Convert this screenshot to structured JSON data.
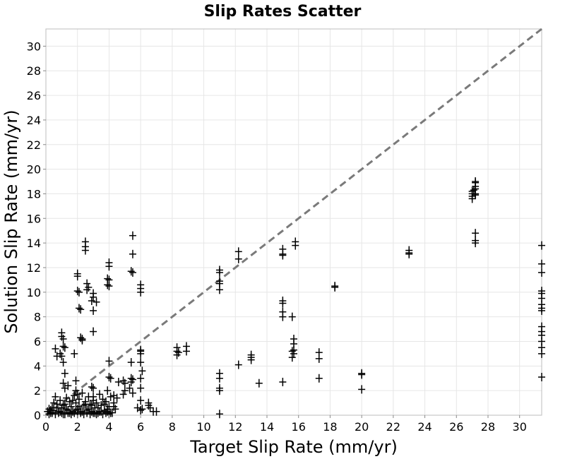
{
  "chart_data": {
    "type": "scatter",
    "title": "Slip Rates Scatter",
    "xlabel": "Target Slip Rate (mm/yr)",
    "ylabel": "Solution Slip Rate (mm/yr)",
    "xlim": [
      0,
      31.4
    ],
    "ylim": [
      0,
      31.4
    ],
    "x_ticks": [
      0,
      2,
      4,
      6,
      8,
      10,
      12,
      14,
      16,
      18,
      20,
      22,
      24,
      26,
      28,
      30
    ],
    "y_ticks": [
      0,
      2,
      4,
      6,
      8,
      10,
      12,
      14,
      16,
      18,
      20,
      22,
      24,
      26,
      28,
      30
    ],
    "x_tick_labels": [
      "0",
      "2",
      "4",
      "6",
      "8",
      "10",
      "12",
      "14",
      "16",
      "18",
      "20",
      "22",
      "24",
      "26",
      "28",
      "30"
    ],
    "y_tick_labels": [
      "0",
      "2",
      "4",
      "6",
      "8",
      "10",
      "12",
      "14",
      "16",
      "18",
      "20",
      "22",
      "24",
      "26",
      "28",
      "30"
    ],
    "grid": true,
    "marker": "plus",
    "marker_color": "#000000",
    "reference_line": {
      "type": "y=x",
      "style": "dashed",
      "color": "#7a7a7a"
    },
    "series": [
      {
        "points": [
          [
            0.1,
            0.3
          ],
          [
            0.2,
            0.5
          ],
          [
            0.3,
            0.2
          ],
          [
            0.4,
            0.6
          ],
          [
            0.5,
            0.4
          ],
          [
            0.6,
            1.5
          ],
          [
            0.7,
            0.9
          ],
          [
            0.8,
            0.2
          ],
          [
            0.9,
            1.2
          ],
          [
            1.0,
            0.6
          ],
          [
            1.1,
            0.1
          ],
          [
            1.2,
            0.9
          ],
          [
            1.3,
            1.4
          ],
          [
            1.4,
            0.4
          ],
          [
            1.5,
            1.1
          ],
          [
            1.6,
            0.7
          ],
          [
            1.7,
            0.3
          ],
          [
            1.8,
            1.6
          ],
          [
            1.9,
            1.0
          ],
          [
            2.0,
            0.5
          ],
          [
            2.1,
            1.3
          ],
          [
            2.2,
            0.2
          ],
          [
            2.3,
            1.8
          ],
          [
            2.4,
            0.8
          ],
          [
            2.5,
            1.1
          ],
          [
            2.6,
            0.4
          ],
          [
            2.7,
            1.5
          ],
          [
            2.8,
            0.9
          ],
          [
            2.9,
            0.3
          ],
          [
            3.0,
            1.2
          ],
          [
            3.1,
            0.6
          ],
          [
            3.2,
            1.0
          ],
          [
            3.3,
            0.2
          ],
          [
            3.4,
            1.7
          ],
          [
            3.5,
            0.8
          ],
          [
            3.6,
            1.3
          ],
          [
            3.7,
            0.4
          ],
          [
            3.8,
            1.1
          ],
          [
            3.9,
            0.3
          ],
          [
            4.0,
            0.7
          ],
          [
            4.1,
            1.5
          ],
          [
            4.2,
            0.2
          ],
          [
            4.3,
            1.0
          ],
          [
            4.4,
            0.5
          ],
          [
            0.3,
            0.4
          ],
          [
            0.5,
            1.0
          ],
          [
            0.7,
            0.6
          ],
          [
            0.9,
            0.3
          ],
          [
            1.1,
            0.8
          ],
          [
            1.3,
            0.5
          ],
          [
            1.5,
            0.2
          ],
          [
            1.7,
            1.2
          ],
          [
            1.9,
            0.4
          ],
          [
            2.1,
            0.7
          ],
          [
            2.3,
            0.3
          ],
          [
            2.5,
            0.9
          ],
          [
            2.7,
            0.5
          ],
          [
            2.9,
            0.8
          ],
          [
            3.1,
            0.2
          ],
          [
            3.3,
            0.6
          ],
          [
            3.5,
            0.3
          ],
          [
            3.7,
            0.9
          ],
          [
            3.9,
            0.5
          ],
          [
            4.1,
            0.2
          ],
          [
            4.3,
            0.7
          ],
          [
            0.2,
            0.1
          ],
          [
            0.4,
            0.2
          ],
          [
            0.6,
            0.1
          ],
          [
            0.8,
            0.3
          ],
          [
            1.0,
            0.2
          ],
          [
            1.2,
            0.1
          ],
          [
            1.4,
            0.2
          ],
          [
            1.6,
            0.1
          ],
          [
            1.8,
            0.2
          ],
          [
            2.0,
            0.1
          ],
          [
            2.2,
            0.3
          ],
          [
            2.4,
            0.1
          ],
          [
            2.6,
            0.2
          ],
          [
            2.8,
            0.1
          ],
          [
            3.0,
            0.2
          ],
          [
            3.2,
            0.1
          ],
          [
            3.4,
            0.3
          ],
          [
            3.6,
            0.1
          ],
          [
            3.8,
            0.2
          ],
          [
            4.0,
            0.1
          ],
          [
            0.7,
            4.8
          ],
          [
            0.6,
            5.4
          ],
          [
            0.9,
            5.0
          ],
          [
            1.0,
            6.7
          ],
          [
            1.0,
            6.4
          ],
          [
            1.1,
            6.2
          ],
          [
            1.1,
            5.6
          ],
          [
            1.2,
            5.5
          ],
          [
            1.0,
            4.8
          ],
          [
            1.1,
            4.3
          ],
          [
            1.2,
            3.4
          ],
          [
            1.1,
            2.6
          ],
          [
            1.2,
            2.2
          ],
          [
            1.4,
            2.4
          ],
          [
            1.8,
            5.0
          ],
          [
            1.9,
            2.8
          ],
          [
            1.9,
            2.0
          ],
          [
            2.0,
            1.7
          ],
          [
            2.0,
            11.5
          ],
          [
            2.0,
            11.3
          ],
          [
            2.0,
            10.1
          ],
          [
            2.1,
            10.0
          ],
          [
            2.1,
            8.7
          ],
          [
            2.2,
            8.6
          ],
          [
            2.2,
            6.3
          ],
          [
            2.3,
            6.2
          ],
          [
            2.3,
            6.1
          ],
          [
            2.5,
            14.1
          ],
          [
            2.5,
            13.7
          ],
          [
            2.5,
            13.4
          ],
          [
            2.6,
            10.7
          ],
          [
            2.6,
            10.2
          ],
          [
            2.7,
            10.4
          ],
          [
            3.0,
            9.9
          ],
          [
            3.0,
            9.6
          ],
          [
            2.9,
            9.3
          ],
          [
            3.2,
            9.2
          ],
          [
            3.0,
            8.5
          ],
          [
            3.0,
            6.8
          ],
          [
            2.9,
            2.3
          ],
          [
            3.0,
            2.2
          ],
          [
            3.0,
            1.5
          ],
          [
            4.0,
            12.4
          ],
          [
            4.0,
            12.1
          ],
          [
            3.9,
            11.1
          ],
          [
            4.0,
            11.0
          ],
          [
            3.9,
            10.6
          ],
          [
            4.0,
            10.5
          ],
          [
            4.0,
            4.4
          ],
          [
            4.0,
            3.1
          ],
          [
            4.1,
            3.0
          ],
          [
            3.9,
            2.0
          ],
          [
            5.5,
            14.6
          ],
          [
            5.5,
            13.1
          ],
          [
            5.4,
            11.7
          ],
          [
            5.5,
            11.6
          ],
          [
            5.4,
            4.3
          ],
          [
            5.4,
            3.0
          ],
          [
            5.5,
            2.9
          ],
          [
            5.4,
            2.7
          ],
          [
            5.3,
            2.2
          ],
          [
            5.5,
            1.8
          ],
          [
            6.0,
            10.6
          ],
          [
            6.0,
            10.3
          ],
          [
            6.0,
            10.0
          ],
          [
            6.0,
            5.3
          ],
          [
            6.0,
            5.2
          ],
          [
            6.0,
            5.0
          ],
          [
            6.0,
            4.3
          ],
          [
            6.1,
            3.6
          ],
          [
            6.0,
            3.0
          ],
          [
            6.0,
            2.2
          ],
          [
            6.0,
            1.2
          ],
          [
            6.1,
            0.5
          ],
          [
            6.5,
            1.0
          ],
          [
            6.5,
            0.8
          ],
          [
            6.6,
            0.6
          ],
          [
            5.8,
            0.6
          ],
          [
            6.0,
            0.4
          ],
          [
            6.8,
            0.3
          ],
          [
            7.0,
            0.3
          ],
          [
            4.6,
            2.7
          ],
          [
            4.9,
            2.8
          ],
          [
            5.0,
            2.6
          ],
          [
            5.0,
            2.0
          ],
          [
            4.9,
            1.7
          ],
          [
            4.5,
            1.4
          ],
          [
            4.3,
            1.6
          ],
          [
            8.3,
            5.5
          ],
          [
            8.3,
            5.2
          ],
          [
            8.4,
            5.1
          ],
          [
            8.3,
            4.9
          ],
          [
            8.9,
            5.6
          ],
          [
            8.9,
            5.2
          ],
          [
            11.0,
            11.8
          ],
          [
            11.0,
            11.6
          ],
          [
            11.0,
            10.9
          ],
          [
            11.0,
            10.7
          ],
          [
            11.0,
            10.2
          ],
          [
            11.0,
            3.4
          ],
          [
            11.0,
            3.0
          ],
          [
            11.0,
            2.2
          ],
          [
            11.0,
            2.0
          ],
          [
            11.0,
            0.1
          ],
          [
            12.2,
            13.3
          ],
          [
            12.2,
            12.7
          ],
          [
            12.2,
            4.1
          ],
          [
            13.0,
            4.9
          ],
          [
            13.0,
            4.7
          ],
          [
            13.0,
            4.5
          ],
          [
            13.5,
            2.6
          ],
          [
            15.0,
            13.5
          ],
          [
            15.0,
            13.1
          ],
          [
            15.0,
            13.0
          ],
          [
            15.0,
            9.3
          ],
          [
            15.0,
            9.1
          ],
          [
            15.0,
            8.4
          ],
          [
            15.0,
            8.0
          ],
          [
            15.0,
            2.7
          ],
          [
            15.8,
            14.1
          ],
          [
            15.8,
            13.8
          ],
          [
            15.6,
            8.0
          ],
          [
            15.7,
            6.2
          ],
          [
            15.7,
            5.8
          ],
          [
            15.7,
            5.3
          ],
          [
            15.6,
            5.2
          ],
          [
            15.7,
            5.0
          ],
          [
            15.6,
            4.7
          ],
          [
            17.3,
            5.1
          ],
          [
            17.3,
            4.6
          ],
          [
            17.3,
            3.0
          ],
          [
            18.3,
            10.5
          ],
          [
            18.3,
            10.4
          ],
          [
            20.0,
            3.4
          ],
          [
            20.0,
            3.3
          ],
          [
            20.0,
            2.1
          ],
          [
            23.0,
            13.4
          ],
          [
            23.0,
            13.2
          ],
          [
            23.0,
            13.1
          ],
          [
            27.0,
            18.2
          ],
          [
            27.0,
            18.0
          ],
          [
            27.0,
            17.8
          ],
          [
            27.0,
            17.6
          ],
          [
            27.1,
            18.3
          ],
          [
            27.2,
            18.0
          ],
          [
            27.2,
            17.9
          ],
          [
            27.2,
            18.9
          ],
          [
            27.2,
            18.6
          ],
          [
            27.2,
            18.4
          ],
          [
            27.2,
            19.0
          ],
          [
            27.2,
            14.8
          ],
          [
            27.2,
            14.2
          ],
          [
            27.2,
            14.0
          ],
          [
            31.4,
            13.8
          ],
          [
            31.4,
            12.3
          ],
          [
            31.4,
            11.6
          ],
          [
            31.4,
            10.1
          ],
          [
            31.4,
            9.9
          ],
          [
            31.4,
            9.5
          ],
          [
            31.4,
            9.0
          ],
          [
            31.4,
            8.7
          ],
          [
            31.4,
            8.5
          ],
          [
            31.4,
            7.2
          ],
          [
            31.4,
            6.8
          ],
          [
            31.4,
            6.5
          ],
          [
            31.4,
            6.0
          ],
          [
            31.4,
            5.5
          ],
          [
            31.4,
            5.0
          ],
          [
            31.4,
            3.1
          ]
        ]
      }
    ]
  }
}
